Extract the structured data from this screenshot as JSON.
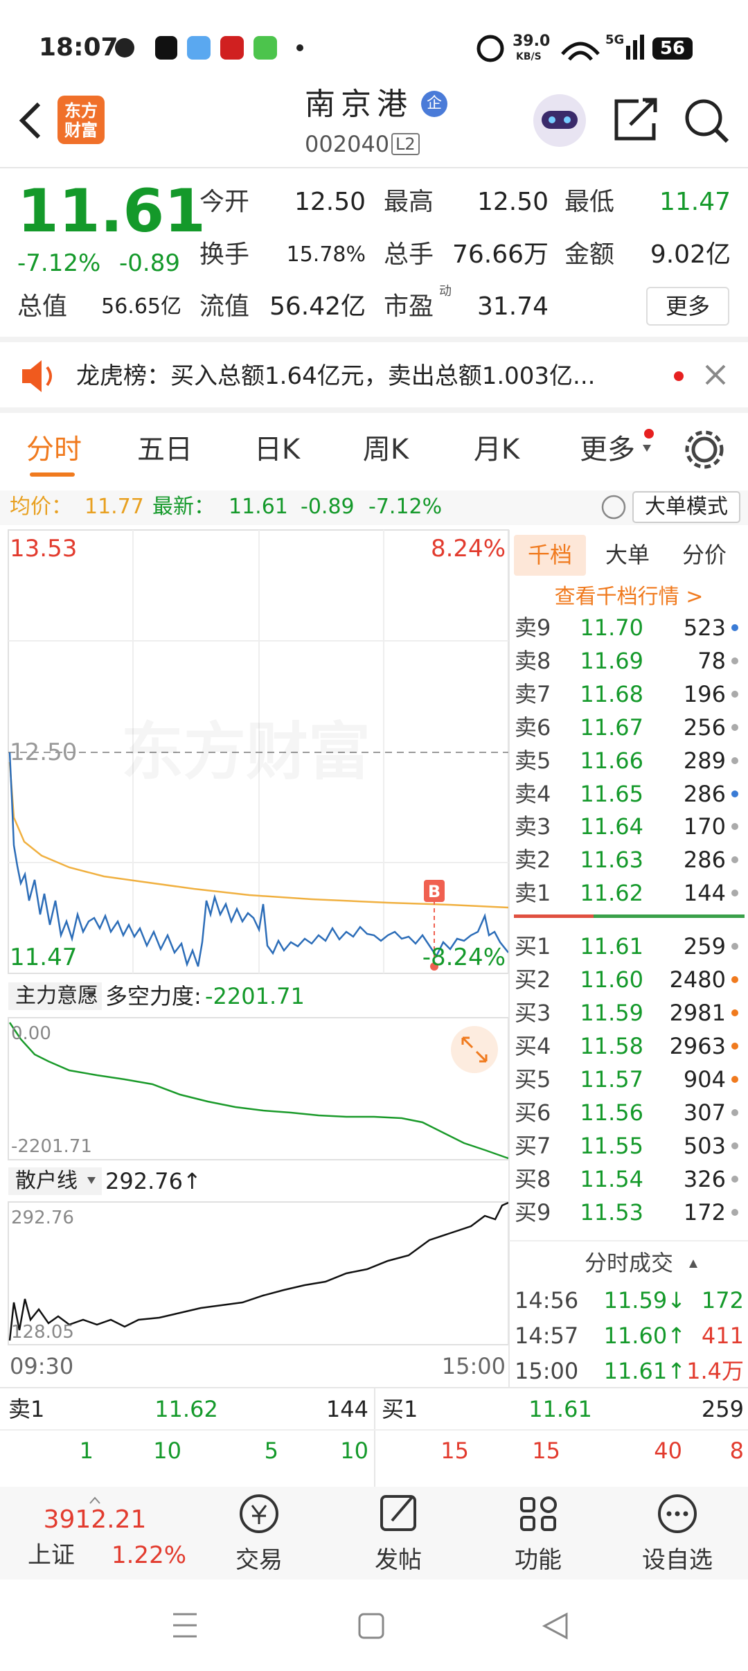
{
  "status_bar": {
    "time": "18:07",
    "net_speed": "39.0",
    "net_unit": "KB/S",
    "signal": "5G",
    "battery": "56"
  },
  "header": {
    "logo": [
      "东方",
      "财富"
    ],
    "title": "南京港",
    "badge": "企",
    "code": "002040",
    "level": "L2"
  },
  "quote": {
    "price": "11.61",
    "change_pct": "-7.12%",
    "change": "-0.89",
    "stats": [
      {
        "label": "今开",
        "value": "12.50"
      },
      {
        "label": "最高",
        "value": "12.50"
      },
      {
        "label": "最低",
        "value": "11.47"
      },
      {
        "label": "换手",
        "value": "15.78%"
      },
      {
        "label": "总手",
        "value": "76.66万"
      },
      {
        "label": "金额",
        "value": "9.02亿"
      },
      {
        "label": "总值",
        "value": "56.65亿"
      },
      {
        "label": "流值",
        "value": "56.42亿"
      },
      {
        "label": "市盈",
        "value": "31.74",
        "tag": "动"
      }
    ],
    "more": "更多"
  },
  "notice": "龙虎榜：买入总额1.64亿元，卖出总额1.003亿...",
  "tabs": [
    "分时",
    "五日",
    "日K",
    "周K",
    "月K",
    "更多"
  ],
  "info_bar": {
    "avg_label": "均价：",
    "avg": "11.77",
    "latest_label": "最新：",
    "latest": "11.61",
    "change": "-0.89",
    "change_pct": "-7.12%",
    "mode": "大单模式"
  },
  "price_chart": {
    "watermark": "东方财富",
    "max": "13.53",
    "max_pct": "8.24%",
    "ref": "12.50",
    "min": "11.47",
    "min_pct": "-8.24%",
    "marker": "B",
    "start": "09:30",
    "end": "15:00"
  },
  "indicator_1": {
    "name": "主力意愿",
    "label": "多空力度:",
    "value": "-2201.71",
    "top": "0.00",
    "bottom": "-2201.71"
  },
  "indicator_2": {
    "name": "散户线",
    "value": "292.76↑",
    "top": "292.76",
    "bottom": "128.05"
  },
  "order_book": {
    "tabs": [
      "千档",
      "大单",
      "分价"
    ],
    "link": "查看千档行情 >",
    "asks": [
      [
        "卖9",
        "11.70",
        "523"
      ],
      [
        "卖8",
        "11.69",
        "78"
      ],
      [
        "卖7",
        "11.68",
        "196"
      ],
      [
        "卖6",
        "11.67",
        "256"
      ],
      [
        "卖5",
        "11.66",
        "289"
      ],
      [
        "卖4",
        "11.65",
        "286"
      ],
      [
        "卖3",
        "11.64",
        "170"
      ],
      [
        "卖2",
        "11.63",
        "286"
      ],
      [
        "卖1",
        "11.62",
        "144"
      ]
    ],
    "bids": [
      [
        "买1",
        "11.61",
        "259"
      ],
      [
        "买2",
        "11.60",
        "2480"
      ],
      [
        "买3",
        "11.59",
        "2981"
      ],
      [
        "买4",
        "11.58",
        "2963"
      ],
      [
        "买5",
        "11.57",
        "904"
      ],
      [
        "买6",
        "11.56",
        "307"
      ],
      [
        "买7",
        "11.55",
        "503"
      ],
      [
        "买8",
        "11.54",
        "326"
      ],
      [
        "买9",
        "11.53",
        "172"
      ]
    ]
  },
  "trades": {
    "title": "分时成交",
    "rows": [
      [
        "14:56",
        "11.59↓",
        "172"
      ],
      [
        "14:57",
        "11.60↑",
        "411"
      ],
      [
        "15:00",
        "11.61↑",
        "1.4万"
      ]
    ]
  },
  "level1": {
    "ask": [
      "卖1",
      "11.62",
      "144"
    ],
    "bid": [
      "买1",
      "11.61",
      "259"
    ],
    "ask_queue": [
      "1",
      "10",
      "5",
      "10"
    ],
    "bid_queue": [
      "15",
      "15",
      "40",
      "8"
    ]
  },
  "bottom_nav": {
    "index_value": "3912.21",
    "index_name": "上证",
    "index_pct": "1.22%",
    "items": [
      "交易",
      "发帖",
      "功能",
      "设自选"
    ]
  }
}
